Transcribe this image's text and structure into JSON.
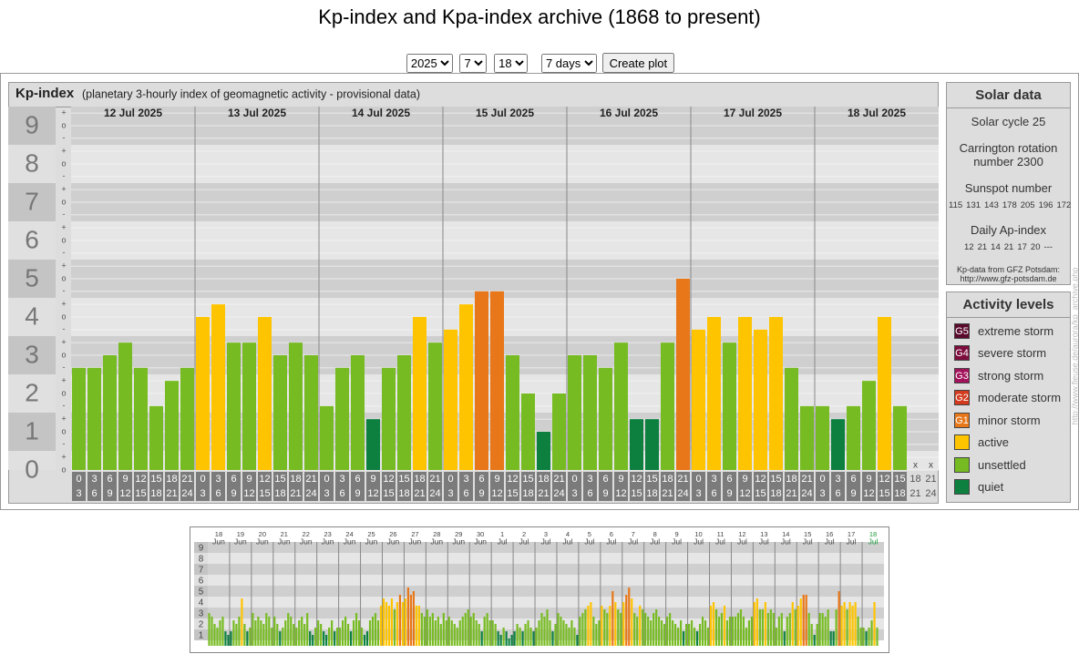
{
  "page": {
    "title": "Kp-index and Kpa-index archive (1868 to present)",
    "controls": {
      "year": "2025",
      "month": "7",
      "day": "18",
      "range": "7 days",
      "button": "Create plot"
    },
    "solar_data": {
      "title": "Solar data",
      "cycle": "Solar cycle 25",
      "carrington": "Carrington rotation number 2300",
      "sunspot_title": "Sunspot number",
      "sunspot": [
        115,
        131,
        143,
        178,
        205,
        196,
        172
      ],
      "ap_title": "Daily Ap-index",
      "ap": [
        12,
        21,
        14,
        21,
        17,
        20,
        "---"
      ],
      "source": "Kp-data from GFZ Potsdam:",
      "source_url": "http://www.gfz-potsdam.de"
    },
    "activity_levels": {
      "title": "Activity levels",
      "items": [
        {
          "badge": "G5",
          "name": "extreme storm",
          "color": "#5a0a2c"
        },
        {
          "badge": "G4",
          "name": "severe storm",
          "color": "#7c0d3c"
        },
        {
          "badge": "G3",
          "name": "strong storm",
          "color": "#a3135c"
        },
        {
          "badge": "G2",
          "name": "moderate storm",
          "color": "#d23b1e"
        },
        {
          "badge": "G1",
          "name": "minor storm",
          "color": "#e87719"
        },
        {
          "name": "active",
          "color": "#ffc400"
        },
        {
          "name": "unsettled",
          "color": "#77bb22"
        },
        {
          "name": "quiet",
          "color": "#0d8040"
        }
      ]
    },
    "watermark": "http://www.fieuse.de/aurora/kp_archive.php"
  },
  "chart_data": [
    {
      "type": "bar",
      "title": "Kp-index",
      "subtitle": "(planetary 3-hourly index of geomagnetic activity - provisional data)",
      "days": [
        "12 Jul 2025",
        "13 Jul 2025",
        "14 Jul 2025",
        "15 Jul 2025",
        "16 Jul 2025",
        "17 Jul 2025",
        "18 Jul 2025"
      ],
      "hours_start": [
        "0",
        "3",
        "6",
        "9",
        "12",
        "15",
        "18",
        "21"
      ],
      "hours_end": [
        "3",
        "6",
        "9",
        "12",
        "15",
        "18",
        "21",
        "24"
      ],
      "values": [
        2.67,
        2.67,
        3,
        3.33,
        2.67,
        1.67,
        2.33,
        2.67,
        4,
        4.33,
        3.33,
        3.33,
        4,
        3,
        3.33,
        3,
        1.67,
        2.67,
        3,
        1.33,
        2.67,
        3,
        4,
        3.33,
        3.67,
        4.33,
        4.67,
        4.67,
        3,
        2,
        1,
        2,
        3,
        3,
        2.67,
        3.33,
        1.33,
        1.33,
        3.33,
        5,
        3.67,
        4,
        3.33,
        4,
        3.67,
        4,
        2.67,
        1.67,
        1.67,
        1.33,
        1.67,
        2.33,
        4,
        1.67,
        null,
        null
      ],
      "colors": [
        "#77bb22",
        "#77bb22",
        "#77bb22",
        "#77bb22",
        "#77bb22",
        "#77bb22",
        "#77bb22",
        "#77bb22",
        "#ffc400",
        "#ffc400",
        "#77bb22",
        "#77bb22",
        "#ffc400",
        "#77bb22",
        "#77bb22",
        "#77bb22",
        "#77bb22",
        "#77bb22",
        "#77bb22",
        "#0d8040",
        "#77bb22",
        "#77bb22",
        "#ffc400",
        "#77bb22",
        "#ffc400",
        "#ffc400",
        "#e87719",
        "#e87719",
        "#77bb22",
        "#77bb22",
        "#0d8040",
        "#77bb22",
        "#77bb22",
        "#77bb22",
        "#77bb22",
        "#77bb22",
        "#0d8040",
        "#0d8040",
        "#77bb22",
        "#e87719",
        "#ffc400",
        "#ffc400",
        "#77bb22",
        "#ffc400",
        "#ffc400",
        "#ffc400",
        "#77bb22",
        "#77bb22",
        "#77bb22",
        "#0d8040",
        "#77bb22",
        "#77bb22",
        "#ffc400",
        "#77bb22",
        null,
        null
      ],
      "missing_label": "x",
      "ylim": [
        0,
        9.5
      ],
      "yticks": [
        0,
        1,
        2,
        3,
        4,
        5,
        6,
        7,
        8,
        9
      ],
      "minor_yticks": [
        {
          "value": 0,
          "label": "o"
        },
        {
          "value": 0.33,
          "label": "+"
        },
        {
          "value": 0.67,
          "label": "-"
        },
        {
          "value": 1,
          "label": "o"
        },
        {
          "value": 1.33,
          "label": "+"
        },
        {
          "value": 1.67,
          "label": "-"
        },
        {
          "value": 2,
          "label": "o"
        },
        {
          "value": 2.33,
          "label": "+"
        },
        {
          "value": 2.67,
          "label": "-"
        },
        {
          "value": 3,
          "label": "o"
        },
        {
          "value": 3.33,
          "label": "+"
        },
        {
          "value": 3.67,
          "label": "-"
        },
        {
          "value": 4,
          "label": "o"
        },
        {
          "value": 4.33,
          "label": "+"
        },
        {
          "value": 4.67,
          "label": "-"
        },
        {
          "value": 5,
          "label": "o"
        },
        {
          "value": 5.33,
          "label": "+"
        },
        {
          "value": 5.67,
          "label": "-"
        },
        {
          "value": 6,
          "label": "o"
        },
        {
          "value": 6.33,
          "label": "+"
        },
        {
          "value": 6.67,
          "label": "-"
        },
        {
          "value": 7,
          "label": "o"
        },
        {
          "value": 7.33,
          "label": "+"
        },
        {
          "value": 7.67,
          "label": "-"
        },
        {
          "value": 8,
          "label": "o"
        },
        {
          "value": 8.33,
          "label": "+"
        },
        {
          "value": 8.67,
          "label": "-"
        },
        {
          "value": 9,
          "label": "o"
        },
        {
          "value": 9.33,
          "label": "+"
        }
      ],
      "grid": true
    },
    {
      "type": "bar",
      "days": [
        "18",
        "19",
        "20",
        "21",
        "22",
        "23",
        "24",
        "25",
        "26",
        "27",
        "28",
        "29",
        "30",
        "1",
        "2",
        "3",
        "4",
        "5",
        "6",
        "7",
        "8",
        "9",
        "10",
        "11",
        "12",
        "13",
        "14",
        "15",
        "16",
        "17",
        "18"
      ],
      "months": [
        "Jun",
        "Jun",
        "Jun",
        "Jun",
        "Jun",
        "Jun",
        "Jun",
        "Jun",
        "Jun",
        "Jun",
        "Jun",
        "Jun",
        "Jun",
        "Jul",
        "Jul",
        "Jul",
        "Jul",
        "Jul",
        "Jul",
        "Jul",
        "Jul",
        "Jul",
        "Jul",
        "Jul",
        "Jul",
        "Jul",
        "Jul",
        "Jul",
        "Jul",
        "Jul",
        "Jul"
      ],
      "current_color": "#1a9a3a",
      "values": [
        3,
        2.67,
        2,
        1.67,
        2.33,
        2.67,
        1.33,
        1,
        1.33,
        2.33,
        2,
        2.67,
        4.33,
        2,
        1.33,
        1.67,
        3,
        2.33,
        2.67,
        2.33,
        2,
        3,
        2.67,
        1.67,
        2.67,
        2,
        1.33,
        1.67,
        2.33,
        3,
        2.67,
        2,
        1.67,
        2.33,
        2.67,
        2,
        3,
        1.33,
        1,
        1.67,
        2.33,
        2,
        1.33,
        1,
        1.67,
        2.33,
        1.33,
        1.67,
        1.67,
        2.33,
        2.67,
        2,
        1.33,
        2.33,
        3,
        2.33,
        1.67,
        1,
        1.33,
        2.33,
        2.67,
        3,
        2.33,
        3.67,
        4.33,
        4,
        3.67,
        4.33,
        3.33,
        4,
        4.67,
        4,
        4.33,
        5.33,
        4.67,
        5,
        3.67,
        3.67,
        3,
        2.67,
        3.33,
        2.67,
        3,
        2.33,
        2.67,
        2,
        3,
        2.33,
        2.67,
        2.33,
        2,
        1.67,
        2.33,
        2.67,
        3,
        3.33,
        2.67,
        3,
        2.33,
        2,
        1.33,
        2.67,
        3,
        2.33,
        2.33,
        2,
        1.33,
        1,
        1.67,
        1.33,
        0.67,
        1,
        1.33,
        2,
        1.67,
        1.33,
        2,
        2.33,
        1.67,
        1.33,
        1.67,
        2.33,
        3,
        2.67,
        3.33,
        2.33,
        1.33,
        2,
        3,
        2.67,
        2.33,
        2,
        1.67,
        2.33,
        1.67,
        1,
        2.67,
        3,
        3.33,
        3.67,
        4,
        2.67,
        2,
        2.33,
        3.67,
        3.33,
        3,
        3.67,
        5,
        4,
        3.33,
        3,
        4,
        4.67,
        5.33,
        4.33,
        3,
        2.67,
        3.67,
        3.33,
        3,
        2.67,
        2.33,
        3,
        3.33,
        2.67,
        2.33,
        2,
        2.67,
        3,
        2.33,
        2,
        1.67,
        2.33,
        1.33,
        2,
        2,
        2.33,
        1.67,
        1.33,
        2,
        2.67,
        2.33,
        1.67,
        3.67,
        4,
        3.33,
        2.67,
        3,
        3.67,
        2.33,
        2.67,
        2.67,
        2.67,
        3,
        3.33,
        2.67,
        1.67,
        2.33,
        2.67,
        4,
        4.33,
        3.33,
        3.33,
        4,
        3,
        3.33,
        3,
        1.67,
        2.67,
        3,
        1.33,
        2.67,
        3,
        4,
        3.33,
        3.67,
        4.33,
        4.67,
        4.67,
        3,
        2,
        1,
        2,
        3,
        3,
        2.67,
        3.33,
        1.33,
        1.33,
        3.33,
        5,
        3.67,
        4,
        3.33,
        4,
        3.67,
        4,
        2.67,
        1.67,
        1.67,
        1.33,
        1.67,
        2.33,
        4,
        1.67,
        null,
        null
      ],
      "colors": [
        "#77bb22",
        "#77bb22",
        "#77bb22",
        "#77bb22",
        "#77bb22",
        "#77bb22",
        "#0d8040",
        "#0d8040",
        "#0d8040",
        "#77bb22",
        "#77bb22",
        "#77bb22",
        "#ffc400",
        "#77bb22",
        "#0d8040",
        "#77bb22",
        "#77bb22",
        "#77bb22",
        "#77bb22",
        "#77bb22",
        "#77bb22",
        "#77bb22",
        "#77bb22",
        "#77bb22",
        "#77bb22",
        "#77bb22",
        "#0d8040",
        "#77bb22",
        "#77bb22",
        "#77bb22",
        "#77bb22",
        "#77bb22",
        "#77bb22",
        "#77bb22",
        "#77bb22",
        "#77bb22",
        "#77bb22",
        "#0d8040",
        "#0d8040",
        "#77bb22",
        "#77bb22",
        "#77bb22",
        "#0d8040",
        "#0d8040",
        "#77bb22",
        "#77bb22",
        "#0d8040",
        "#77bb22",
        "#77bb22",
        "#77bb22",
        "#77bb22",
        "#77bb22",
        "#0d8040",
        "#77bb22",
        "#77bb22",
        "#77bb22",
        "#77bb22",
        "#0d8040",
        "#0d8040",
        "#77bb22",
        "#77bb22",
        "#77bb22",
        "#77bb22",
        "#ffc400",
        "#ffc400",
        "#ffc400",
        "#ffc400",
        "#ffc400",
        "#77bb22",
        "#ffc400",
        "#e87719",
        "#ffc400",
        "#ffc400",
        "#e87719",
        "#e87719",
        "#e87719",
        "#ffc400",
        "#ffc400",
        "#77bb22",
        "#77bb22",
        "#77bb22",
        "#77bb22",
        "#77bb22",
        "#77bb22",
        "#77bb22",
        "#77bb22",
        "#77bb22",
        "#77bb22",
        "#77bb22",
        "#77bb22",
        "#77bb22",
        "#77bb22",
        "#77bb22",
        "#77bb22",
        "#77bb22",
        "#77bb22",
        "#77bb22",
        "#77bb22",
        "#77bb22",
        "#77bb22",
        "#0d8040",
        "#77bb22",
        "#77bb22",
        "#77bb22",
        "#77bb22",
        "#77bb22",
        "#0d8040",
        "#0d8040",
        "#77bb22",
        "#0d8040",
        "#0d8040",
        "#0d8040",
        "#0d8040",
        "#77bb22",
        "#77bb22",
        "#0d8040",
        "#77bb22",
        "#77bb22",
        "#77bb22",
        "#0d8040",
        "#77bb22",
        "#77bb22",
        "#77bb22",
        "#77bb22",
        "#77bb22",
        "#77bb22",
        "#0d8040",
        "#77bb22",
        "#77bb22",
        "#77bb22",
        "#77bb22",
        "#77bb22",
        "#77bb22",
        "#77bb22",
        "#77bb22",
        "#0d8040",
        "#77bb22",
        "#77bb22",
        "#77bb22",
        "#ffc400",
        "#ffc400",
        "#77bb22",
        "#77bb22",
        "#77bb22",
        "#ffc400",
        "#77bb22",
        "#77bb22",
        "#ffc400",
        "#e87719",
        "#ffc400",
        "#77bb22",
        "#77bb22",
        "#ffc400",
        "#e87719",
        "#e87719",
        "#ffc400",
        "#77bb22",
        "#77bb22",
        "#ffc400",
        "#77bb22",
        "#77bb22",
        "#77bb22",
        "#77bb22",
        "#77bb22",
        "#77bb22",
        "#77bb22",
        "#77bb22",
        "#77bb22",
        "#77bb22",
        "#77bb22",
        "#77bb22",
        "#77bb22",
        "#77bb22",
        "#77bb22",
        "#0d8040",
        "#77bb22",
        "#77bb22",
        "#77bb22",
        "#77bb22",
        "#0d8040",
        "#77bb22",
        "#77bb22",
        "#77bb22",
        "#77bb22",
        "#ffc400",
        "#ffc400",
        "#77bb22",
        "#77bb22",
        "#77bb22",
        "#ffc400",
        "#77bb22",
        "#77bb22",
        "#77bb22",
        "#77bb22",
        "#77bb22",
        "#77bb22",
        "#77bb22",
        "#77bb22",
        "#77bb22",
        "#77bb22",
        "#ffc400",
        "#ffc400",
        "#77bb22",
        "#77bb22",
        "#ffc400",
        "#77bb22",
        "#77bb22",
        "#77bb22",
        "#77bb22",
        "#77bb22",
        "#77bb22",
        "#0d8040",
        "#77bb22",
        "#77bb22",
        "#ffc400",
        "#77bb22",
        "#ffc400",
        "#ffc400",
        "#e87719",
        "#e87719",
        "#77bb22",
        "#77bb22",
        "#0d8040",
        "#77bb22",
        "#77bb22",
        "#77bb22",
        "#77bb22",
        "#77bb22",
        "#0d8040",
        "#0d8040",
        "#77bb22",
        "#e87719",
        "#ffc400",
        "#ffc400",
        "#77bb22",
        "#ffc400",
        "#ffc400",
        "#ffc400",
        "#77bb22",
        "#77bb22",
        "#77bb22",
        "#0d8040",
        "#77bb22",
        "#77bb22",
        "#ffc400",
        "#77bb22",
        null,
        null
      ],
      "ylim": [
        0,
        9.5
      ],
      "yticks": [
        1,
        2,
        3,
        4,
        5,
        6,
        7,
        8,
        9
      ],
      "grid": true
    }
  ]
}
